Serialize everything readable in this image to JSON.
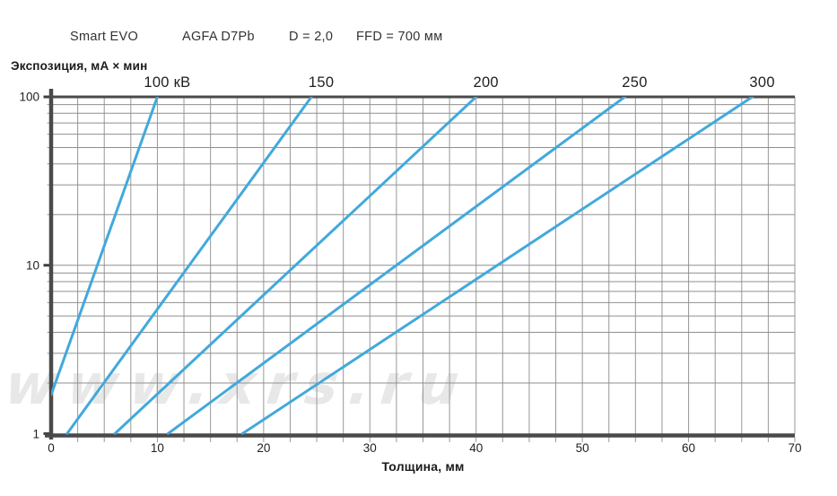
{
  "header": {
    "device": "Smart EVO",
    "film": "AGFA D7Pb",
    "density": "D = 2,0",
    "ffd": "FFD = 700 мм"
  },
  "watermark": "www.xrs.ru",
  "chart_data": {
    "type": "line",
    "title": "",
    "xlabel": "Толщина, мм",
    "ylabel": "Экспозиция, мА × мин",
    "x_axis": {
      "min": 0,
      "max": 70,
      "tick_step": 10,
      "minor_grid_step": 2.5,
      "tick_labels": [
        "0",
        "10",
        "20",
        "30",
        "40",
        "50",
        "60",
        "70"
      ]
    },
    "y_axis": {
      "scale": "log",
      "min": 1,
      "max": 100,
      "tick_values": [
        1,
        10,
        100
      ],
      "tick_labels": [
        "1",
        "10",
        "100"
      ],
      "minor_grid_values": [
        2,
        3,
        4,
        5,
        6,
        7,
        8,
        9,
        10,
        20,
        30,
        40,
        50,
        60,
        70,
        80,
        90
      ]
    },
    "grid": true,
    "legend_position": "top-edge",
    "line_color": "#41a9dc",
    "series": [
      {
        "name": "100 кВ",
        "kv": 100,
        "points": [
          [
            0,
            1.7
          ],
          [
            10,
            100
          ]
        ]
      },
      {
        "name": "150",
        "kv": 150,
        "points": [
          [
            1.5,
            1
          ],
          [
            24.5,
            100
          ]
        ]
      },
      {
        "name": "200",
        "kv": 200,
        "points": [
          [
            6,
            1
          ],
          [
            40,
            100
          ]
        ]
      },
      {
        "name": "250",
        "kv": 250,
        "points": [
          [
            11,
            1
          ],
          [
            54,
            100
          ]
        ]
      },
      {
        "name": "300",
        "kv": 300,
        "points": [
          [
            18,
            1
          ],
          [
            66,
            100
          ]
        ]
      }
    ]
  }
}
